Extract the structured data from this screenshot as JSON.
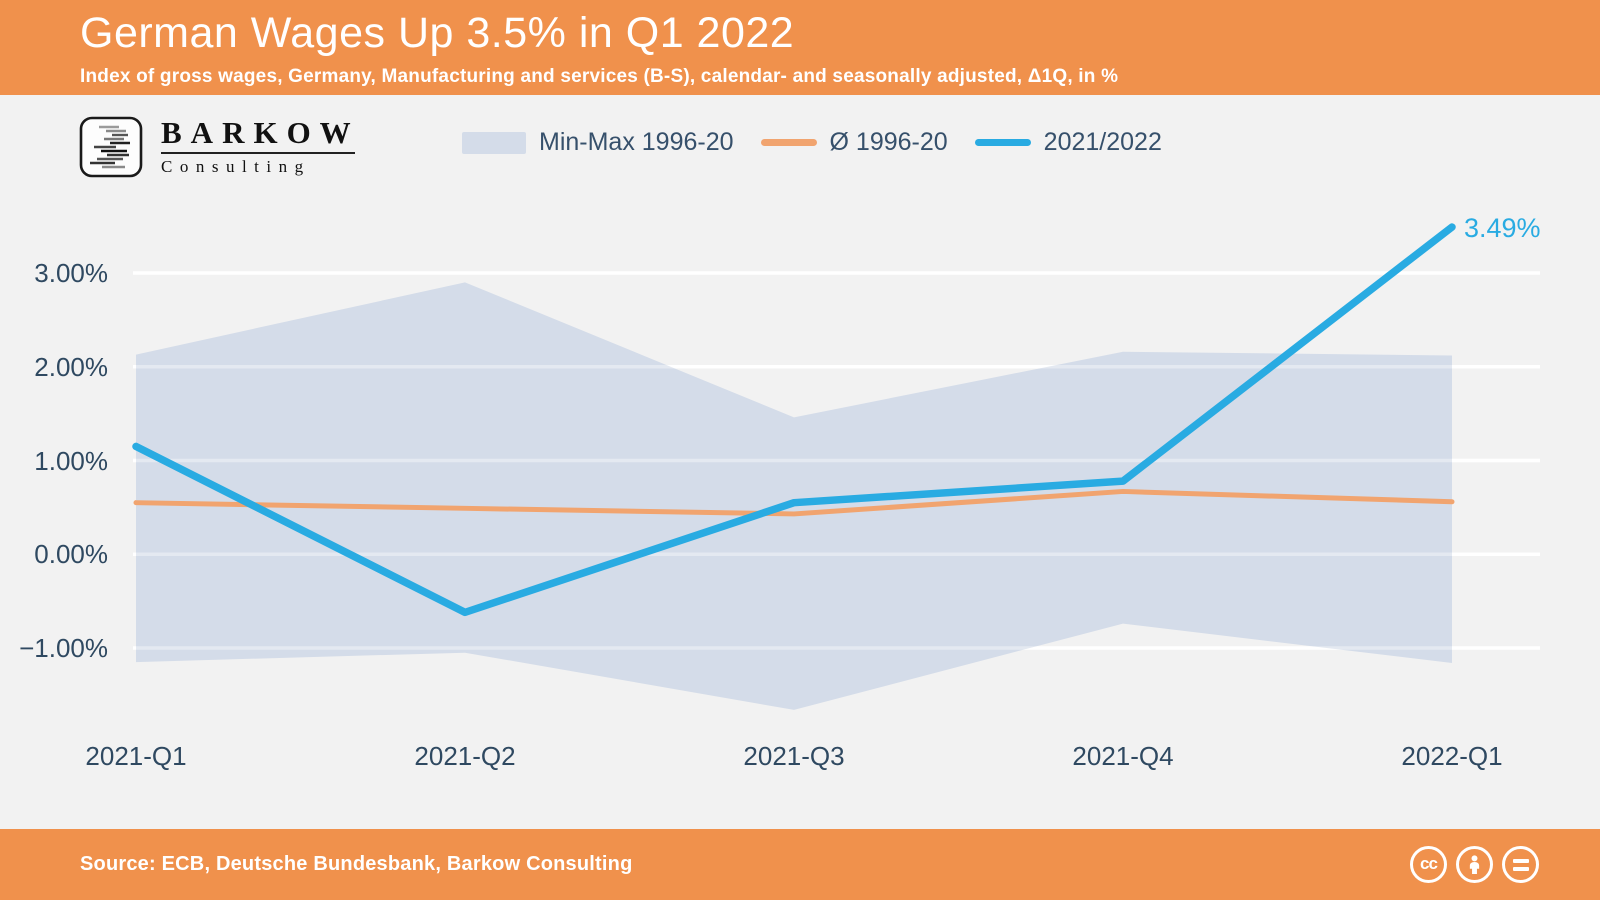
{
  "header": {
    "title": "German Wages Up 3.5% in Q1 2022",
    "subtitle": "Index of gross wages, Germany, Manufacturing and services (B-S), calendar- and seasonally adjusted, Δ1Q, in %",
    "background_color": "#f0914c"
  },
  "logo": {
    "brand": "BARKOW",
    "sub": "Consulting"
  },
  "chart_data": {
    "type": "line",
    "title": "German Wages Up 3.5% in Q1 2022",
    "categories": [
      "2021-Q1",
      "2021-Q2",
      "2021-Q3",
      "2021-Q4",
      "2022-Q1"
    ],
    "series": [
      {
        "name": "Min-Max 1996-20",
        "type": "band",
        "color": "#d4dce9",
        "max": [
          2.13,
          2.9,
          1.46,
          2.16,
          2.12
        ],
        "min": [
          -1.15,
          -1.05,
          -1.66,
          -0.74,
          -1.16
        ]
      },
      {
        "name": "Ø 1996-20",
        "type": "line",
        "color": "#f1a46f",
        "values": [
          0.55,
          0.49,
          0.43,
          0.67,
          0.56
        ]
      },
      {
        "name": "2021/2022",
        "type": "line",
        "color": "#29abe2",
        "values": [
          1.15,
          -0.62,
          0.55,
          0.78,
          3.49
        ]
      }
    ],
    "yticks": [
      {
        "label": "3.00%",
        "value": 3
      },
      {
        "label": "2.00%",
        "value": 2
      },
      {
        "label": "1.00%",
        "value": 1
      },
      {
        "label": "0.00%",
        "value": 0
      },
      {
        "label": "−1.00%",
        "value": -1
      }
    ],
    "ylim": [
      -2.0,
      3.6
    ],
    "grid": true,
    "legend_position": "top",
    "annotation": {
      "text": "3.49%",
      "series": "2021/2022",
      "category": "2022-Q1",
      "color": "#29abe2"
    },
    "xlabel": "",
    "ylabel": ""
  },
  "footer": {
    "source": "Source: ECB, Deutsche Bundesbank, Barkow Consulting",
    "license_icons": [
      "cc",
      "by",
      "nd"
    ]
  }
}
